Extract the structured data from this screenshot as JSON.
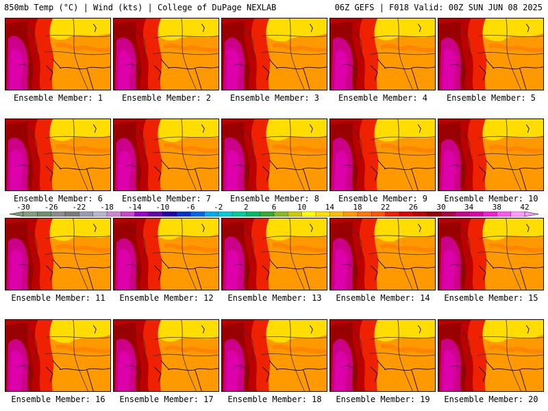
{
  "header": {
    "left": "850mb Temp (°C) | Wind (kts) | College of DuPage NEXLAB",
    "right": "06Z GEFS | F018 Valid: 00Z SUN JUN 08 2025"
  },
  "members": [
    "Ensemble Member: 1",
    "Ensemble Member: 2",
    "Ensemble Member: 3",
    "Ensemble Member: 4",
    "Ensemble Member: 5",
    "Ensemble Member: 6",
    "Ensemble Member: 7",
    "Ensemble Member: 8",
    "Ensemble Member: 9",
    "Ensemble Member: 10",
    "Ensemble Member: 11",
    "Ensemble Member: 12",
    "Ensemble Member: 13",
    "Ensemble Member: 14",
    "Ensemble Member: 15",
    "Ensemble Member: 16",
    "Ensemble Member: 17",
    "Ensemble Member: 18",
    "Ensemble Member: 19",
    "Ensemble Member: 20"
  ],
  "colorbar": {
    "labels": [
      "-30",
      "-26",
      "-22",
      "-18",
      "-14",
      "-10",
      "-6",
      "-2",
      "2",
      "6",
      "10",
      "14",
      "18",
      "22",
      "26",
      "30",
      "34",
      "38",
      "42"
    ],
    "colors": [
      "#7f9f7f",
      "#6f8f6f",
      "#8c8c8c",
      "#7a7a7a",
      "#9a9ab0",
      "#b5b5d0",
      "#cc88cc",
      "#cc44cc",
      "#9900cc",
      "#6600aa",
      "#2200aa",
      "#0033cc",
      "#0066ee",
      "#00aaee",
      "#00ccdd",
      "#00cc99",
      "#00bb66",
      "#33aa33",
      "#88bb22",
      "#cccc00",
      "#ffff00",
      "#ffdd00",
      "#ffbb00",
      "#ff9900",
      "#ff7700",
      "#ff5500",
      "#ee2200",
      "#dd0000",
      "#bb0000",
      "#990000",
      "#aa0044",
      "#cc0088",
      "#dd00aa",
      "#ee22cc",
      "#ff55ee",
      "#ff99ff"
    ]
  },
  "palette": {
    "yellow": "#ffdd00",
    "orange": "#ff9900",
    "darkorange": "#ff7700",
    "red": "#ee2200",
    "darkred": "#bb0000",
    "maroon": "#990000",
    "magenta": "#cc0088",
    "pink": "#dd00aa"
  }
}
